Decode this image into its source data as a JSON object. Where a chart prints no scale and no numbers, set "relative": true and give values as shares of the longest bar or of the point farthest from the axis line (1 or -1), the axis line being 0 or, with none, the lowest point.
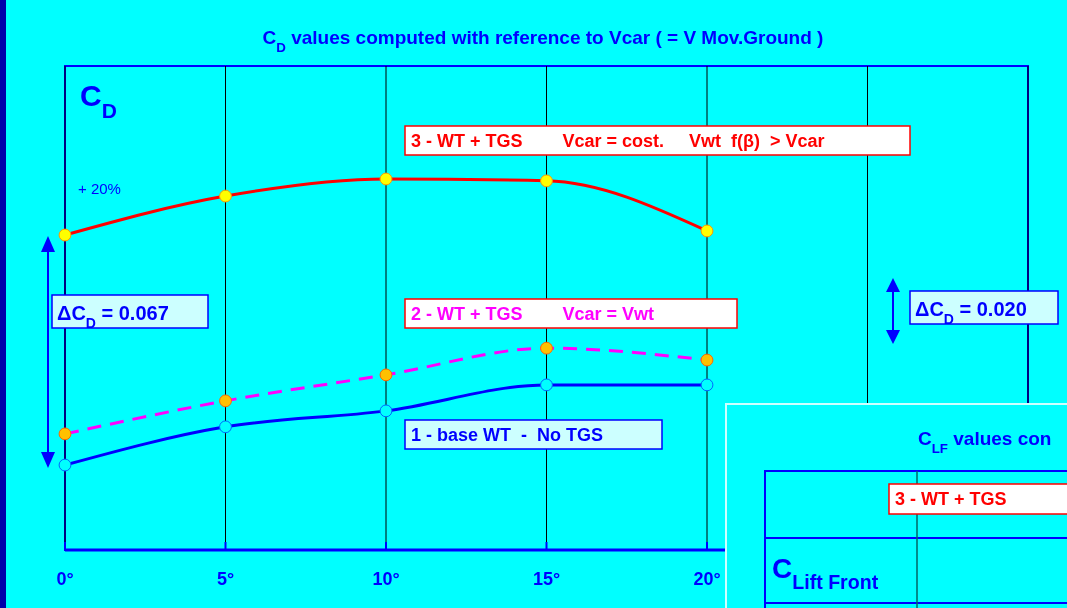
{
  "chart_data": [
    {
      "type": "line",
      "title": "C$_{D}$ values computed with reference to Vcar ( = V Mov.Ground )",
      "ylabel": "C$_{D}$",
      "x": [
        0,
        5,
        10,
        15,
        20
      ],
      "xlim": [
        0,
        30
      ],
      "xticks": [
        {
          "value": 0,
          "label": "0°"
        },
        {
          "value": 5,
          "label": "5°"
        },
        {
          "value": 10,
          "label": "10°"
        },
        {
          "value": 15,
          "label": "15°"
        },
        {
          "value": 20,
          "label": "20°"
        },
        {
          "value": 25,
          "label": null
        },
        {
          "value": 30,
          "label": null
        }
      ],
      "relative": true,
      "grid": "x",
      "marker": "circle",
      "series": [
        {
          "name": "3 - WT + TGS        Vcar = cost.     Vwt  f(β)  > Vcar",
          "color": "#ff0000",
          "values": [
            0.849,
            0.954,
            1.0,
            0.995,
            0.86
          ]
        },
        {
          "name": "2 - WT + TGS        Vcar = Vwt",
          "color": "#ff00ff",
          "line_style": "dashed",
          "values": [
            0.313,
            0.402,
            0.472,
            0.544,
            0.512
          ]
        },
        {
          "name": "1 - base WT  -  No TGS",
          "color": "#0000ff",
          "values": [
            0.229,
            0.332,
            0.375,
            0.445,
            0.445
          ]
        }
      ],
      "annotations": [
        "+ 20%",
        "ΔC$_{D}$ = 0.067",
        "ΔC$_{D}$ = 0.020"
      ]
    },
    {
      "type": "other",
      "title": "C$_{LF}$ values con",
      "ylabel": "C$_{Lift Front}$",
      "annotations": [
        "3 - WT + TGS"
      ]
    }
  ]
}
